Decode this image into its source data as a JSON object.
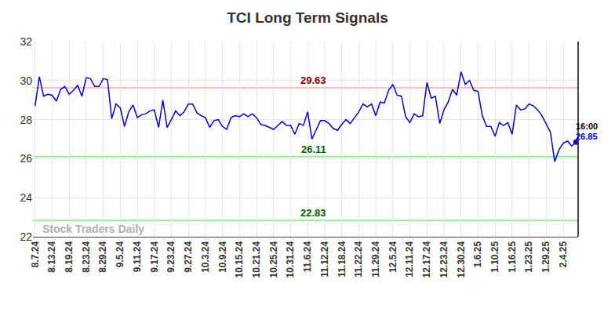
{
  "chart_data": {
    "type": "line",
    "title": "TCI Long Term Signals",
    "color": "#0000ee",
    "marker": "circle",
    "grid": true,
    "categories": [
      "8.7.24",
      null,
      null,
      null,
      "8.13.24",
      null,
      null,
      null,
      "8.19.24",
      null,
      null,
      null,
      "8.23.24",
      null,
      null,
      null,
      "8.29.24",
      null,
      null,
      null,
      "9.5.24",
      null,
      null,
      null,
      "9.11.24",
      null,
      null,
      null,
      "9.17.24",
      null,
      null,
      null,
      "9.23.24",
      null,
      null,
      null,
      "9.27.24",
      null,
      null,
      null,
      "10.3.24",
      null,
      null,
      null,
      "10.9.24",
      null,
      null,
      null,
      "10.15.24",
      null,
      null,
      null,
      "10.21.24",
      null,
      null,
      null,
      "10.25.24",
      null,
      null,
      null,
      "10.31.24",
      null,
      null,
      null,
      "11.6.24",
      null,
      null,
      null,
      "11.12.24",
      null,
      null,
      null,
      "11.18.24",
      null,
      null,
      null,
      "11.22.24",
      null,
      null,
      null,
      "11.29.24",
      null,
      null,
      null,
      "12.5.24",
      null,
      null,
      null,
      "12.11.24",
      null,
      null,
      null,
      "12.17.24",
      null,
      null,
      null,
      "12.23.24",
      null,
      null,
      null,
      "12.30.24",
      null,
      null,
      null,
      "1.6.25",
      null,
      null,
      null,
      "1.10.25",
      null,
      null,
      null,
      "1.16.25",
      null,
      null,
      null,
      "1.23.25",
      null,
      null,
      null,
      "1.29.25",
      null,
      null,
      null,
      "2.4.25",
      null,
      null,
      null
    ],
    "values": [
      28.7,
      30.2,
      29.2,
      29.3,
      29.25,
      28.95,
      29.55,
      29.7,
      29.3,
      29.5,
      29.75,
      29.2,
      30.15,
      30.1,
      29.7,
      29.7,
      30.1,
      30.05,
      28.05,
      28.8,
      28.6,
      27.65,
      28.4,
      28.75,
      28.1,
      28.25,
      28.3,
      28.45,
      28.5,
      27.6,
      29.0,
      27.6,
      28.0,
      28.45,
      28.2,
      28.4,
      28.8,
      28.8,
      28.35,
      28.2,
      28.1,
      27.6,
      27.95,
      28.0,
      27.65,
      27.5,
      28.1,
      28.2,
      28.15,
      28.3,
      28.15,
      28.3,
      28.1,
      27.75,
      27.7,
      27.6,
      27.5,
      27.7,
      27.9,
      27.7,
      27.7,
      27.25,
      27.8,
      27.7,
      28.4,
      27.0,
      27.5,
      27.95,
      27.95,
      27.8,
      27.55,
      27.45,
      27.75,
      28.0,
      27.8,
      28.1,
      28.4,
      28.8,
      28.65,
      28.8,
      28.2,
      28.9,
      28.85,
      29.5,
      29.8,
      29.25,
      29.2,
      28.15,
      27.85,
      28.3,
      28.15,
      28.2,
      29.9,
      29.1,
      29.2,
      27.8,
      28.5,
      28.9,
      29.55,
      29.25,
      30.45,
      29.8,
      30.0,
      29.5,
      29.45,
      28.2,
      27.65,
      27.65,
      27.15,
      27.85,
      27.7,
      27.85,
      27.25,
      28.75,
      28.5,
      28.55,
      28.8,
      28.7,
      28.5,
      28.2,
      27.75,
      27.35,
      25.85,
      26.45,
      26.8,
      26.9,
      26.65,
      26.85
    ],
    "ylim": [
      22,
      32
    ],
    "yticks": [
      22,
      24,
      26,
      28,
      30,
      32
    ],
    "levels": [
      {
        "value": 29.63,
        "label": "29.63",
        "color": "#ffbbbb",
        "label_color": "#8b0000"
      },
      {
        "value": 26.11,
        "label": "26.11",
        "color": "#90ee90",
        "label_color": "#006400"
      },
      {
        "value": 22.83,
        "label": "22.83",
        "color": "#90ee90",
        "label_color": "#006400"
      }
    ],
    "last_time": "16:00",
    "watermark": "Stock Traders Daily"
  }
}
